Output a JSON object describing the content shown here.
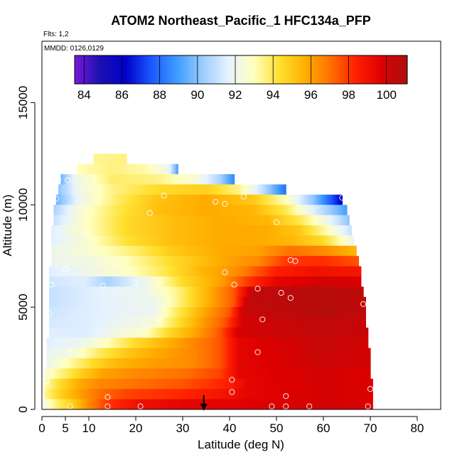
{
  "chart_data": {
    "type": "heatmap",
    "title": "ATOM2 Northeast_Pacific_1 HFC134a_PFP",
    "subtitle_flights": "Flts: 1,2",
    "subtitle_dates": "MMDD: 0126,0129",
    "xlabel": "Latitude (deg N)",
    "ylabel": "Altitude (m)",
    "xlim": [
      0,
      85
    ],
    "ylim": [
      0,
      18000
    ],
    "x_ticks": [
      0,
      5,
      10,
      20,
      30,
      40,
      50,
      60,
      70,
      80
    ],
    "y_ticks": [
      0,
      5000,
      10000,
      15000
    ],
    "colorbar": {
      "min": 83.5,
      "max": 101.1,
      "ticks": [
        84,
        86,
        88,
        90,
        92,
        94,
        96,
        98,
        100
      ],
      "colors": [
        "#7a18d8",
        "#1a10b0",
        "#0000cc",
        "#1c58ff",
        "#3c9cff",
        "#9cccff",
        "#e6f2ff",
        "#ffffc0",
        "#ffe030",
        "#ffb000",
        "#ff7000",
        "#ff2000",
        "#dd0000",
        "#aa1010"
      ]
    },
    "rows": [
      {
        "alt": 12250,
        "lat_min": 11,
        "lat_max": 18,
        "centers": [
          [
            11,
            93.4
          ],
          [
            18,
            93.6
          ]
        ]
      },
      {
        "alt": 11750,
        "lat_min": 7.5,
        "lat_max": 29,
        "centers": [
          [
            7.5,
            93.0
          ],
          [
            15,
            93.6
          ],
          [
            22,
            93.2
          ],
          [
            27,
            92.0
          ],
          [
            29,
            89.0
          ]
        ]
      },
      {
        "alt": 11250,
        "lat_min": 4,
        "lat_max": 41,
        "centers": [
          [
            4,
            89.5
          ],
          [
            7,
            92.0
          ],
          [
            15,
            93.8
          ],
          [
            25,
            93.5
          ],
          [
            33,
            92.5
          ],
          [
            38,
            90.5
          ],
          [
            41,
            88.5
          ]
        ]
      },
      {
        "alt": 10750,
        "lat_min": 3.5,
        "lat_max": 52,
        "centers": [
          [
            3.5,
            90.0
          ],
          [
            8,
            92.2
          ],
          [
            15,
            93.5
          ],
          [
            25,
            94.5
          ],
          [
            35,
            94.8
          ],
          [
            42,
            93.5
          ],
          [
            47,
            91.0
          ],
          [
            52,
            88.0
          ]
        ]
      },
      {
        "alt": 10250,
        "lat_min": 3,
        "lat_max": 64,
        "centers": [
          [
            3,
            89.5
          ],
          [
            8,
            92.0
          ],
          [
            16,
            93.8
          ],
          [
            25,
            95.2
          ],
          [
            35,
            95.8
          ],
          [
            45,
            95.0
          ],
          [
            52,
            93.0
          ],
          [
            58,
            90.0
          ],
          [
            64,
            86.0
          ]
        ]
      },
      {
        "alt": 9750,
        "lat_min": 2.5,
        "lat_max": 65,
        "centers": [
          [
            2.5,
            90.5
          ],
          [
            8,
            92.5
          ],
          [
            16,
            94.0
          ],
          [
            25,
            95.3
          ],
          [
            35,
            95.8
          ],
          [
            45,
            95.5
          ],
          [
            52,
            94.0
          ],
          [
            58,
            91.5
          ],
          [
            65,
            89.0
          ]
        ]
      },
      {
        "alt": 9250,
        "lat_min": 2.5,
        "lat_max": 65.5,
        "centers": [
          [
            2.5,
            91.0
          ],
          [
            9,
            92.8
          ],
          [
            18,
            94.5
          ],
          [
            28,
            95.3
          ],
          [
            38,
            95.8
          ],
          [
            48,
            95.5
          ],
          [
            55,
            94.0
          ],
          [
            61,
            92.0
          ],
          [
            65.5,
            90.0
          ]
        ]
      },
      {
        "alt": 8750,
        "lat_min": 2,
        "lat_max": 66,
        "centers": [
          [
            2,
            91.5
          ],
          [
            9,
            92.8
          ],
          [
            18,
            94.5
          ],
          [
            28,
            95.3
          ],
          [
            38,
            95.8
          ],
          [
            48,
            95.8
          ],
          [
            55,
            95.0
          ],
          [
            61,
            93.0
          ],
          [
            66,
            91.0
          ]
        ]
      },
      {
        "alt": 8250,
        "lat_min": 2,
        "lat_max": 66.5,
        "centers": [
          [
            2,
            91.5
          ],
          [
            9,
            92.5
          ],
          [
            18,
            94.3
          ],
          [
            28,
            95.3
          ],
          [
            38,
            95.8
          ],
          [
            46,
            95.8
          ],
          [
            53,
            95.5
          ],
          [
            60,
            94.5
          ],
          [
            66.5,
            92.0
          ]
        ]
      },
      {
        "alt": 7750,
        "lat_min": 2,
        "lat_max": 67,
        "centers": [
          [
            2,
            92.0
          ],
          [
            9,
            92.5
          ],
          [
            18,
            93.5
          ],
          [
            28,
            95.0
          ],
          [
            38,
            95.8
          ],
          [
            46,
            96.0
          ],
          [
            53,
            97.0
          ],
          [
            60,
            96.5
          ],
          [
            67,
            95.5
          ]
        ]
      },
      {
        "alt": 7250,
        "lat_min": 2,
        "lat_max": 67.5,
        "centers": [
          [
            2,
            92.0
          ],
          [
            9,
            92.2
          ],
          [
            18,
            93.0
          ],
          [
            28,
            94.5
          ],
          [
            38,
            95.8
          ],
          [
            46,
            96.5
          ],
          [
            52,
            98.0
          ],
          [
            60,
            98.2
          ],
          [
            67.5,
            97.5
          ]
        ]
      },
      {
        "alt": 6750,
        "lat_min": 1.5,
        "lat_max": 68,
        "centers": [
          [
            1.5,
            91.5
          ],
          [
            9,
            92.0
          ],
          [
            18,
            92.8
          ],
          [
            26,
            94.0
          ],
          [
            34,
            95.5
          ],
          [
            42,
            96.5
          ],
          [
            50,
            98.5
          ],
          [
            58,
            99.0
          ],
          [
            68,
            98.8
          ]
        ]
      },
      {
        "alt": 6250,
        "lat_min": 1.5,
        "lat_max": 68,
        "centers": [
          [
            1.5,
            91.2
          ],
          [
            9,
            91.5
          ],
          [
            14,
            90.5
          ],
          [
            22,
            92.0
          ],
          [
            30,
            94.5
          ],
          [
            38,
            96.0
          ],
          [
            44,
            98.0
          ],
          [
            50,
            99.5
          ],
          [
            60,
            100.0
          ],
          [
            68,
            99.8
          ]
        ]
      },
      {
        "alt": 5750,
        "lat_min": 1.5,
        "lat_max": 68.5,
        "centers": [
          [
            1.5,
            91.0
          ],
          [
            10,
            91.5
          ],
          [
            16,
            91.8
          ],
          [
            22,
            92.0
          ],
          [
            29,
            93.5
          ],
          [
            35,
            95.5
          ],
          [
            41,
            97.5
          ],
          [
            45,
            100.5
          ],
          [
            60,
            100.8
          ],
          [
            68.5,
            100.5
          ]
        ]
      },
      {
        "alt": 5250,
        "lat_min": 1.5,
        "lat_max": 69,
        "centers": [
          [
            1.5,
            91.0
          ],
          [
            10,
            91.5
          ],
          [
            18,
            91.8
          ],
          [
            24,
            92.0
          ],
          [
            29,
            93.5
          ],
          [
            35,
            95.5
          ],
          [
            41,
            97.5
          ],
          [
            44,
            100.5
          ],
          [
            60,
            100.8
          ],
          [
            69,
            100.5
          ]
        ]
      },
      {
        "alt": 4750,
        "lat_min": 1.5,
        "lat_max": 69,
        "centers": [
          [
            1.5,
            91.2
          ],
          [
            10,
            91.5
          ],
          [
            18,
            91.8
          ],
          [
            24,
            92.0
          ],
          [
            29,
            94.0
          ],
          [
            35,
            96.0
          ],
          [
            40,
            97.5
          ],
          [
            43,
            100.3
          ],
          [
            60,
            100.8
          ],
          [
            69,
            100.5
          ]
        ]
      },
      {
        "alt": 4250,
        "lat_min": 1.5,
        "lat_max": 69,
        "centers": [
          [
            1.5,
            91.3
          ],
          [
            10,
            91.5
          ],
          [
            18,
            92.0
          ],
          [
            24,
            92.5
          ],
          [
            28,
            94.0
          ],
          [
            34,
            96.0
          ],
          [
            39,
            97.5
          ],
          [
            43,
            100.0
          ],
          [
            60,
            100.5
          ],
          [
            69,
            100.3
          ]
        ]
      },
      {
        "alt": 3750,
        "lat_min": 1.5,
        "lat_max": 69.5,
        "centers": [
          [
            1.5,
            91.5
          ],
          [
            10,
            91.5
          ],
          [
            18,
            92.5
          ],
          [
            22,
            92.8
          ],
          [
            27,
            94.5
          ],
          [
            33,
            96.0
          ],
          [
            38,
            97.5
          ],
          [
            42,
            100.0
          ],
          [
            60,
            100.5
          ],
          [
            69.5,
            100.3
          ]
        ]
      },
      {
        "alt": 3250,
        "lat_min": 1,
        "lat_max": 69.5,
        "centers": [
          [
            1,
            91.5
          ],
          [
            8,
            92.0
          ],
          [
            14,
            93.0
          ],
          [
            20,
            94.5
          ],
          [
            26,
            95.5
          ],
          [
            32,
            96.5
          ],
          [
            38,
            97.5
          ],
          [
            42,
            99.5
          ],
          [
            60,
            100.3
          ],
          [
            69.5,
            100.0
          ]
        ]
      },
      {
        "alt": 2750,
        "lat_min": 1,
        "lat_max": 70,
        "centers": [
          [
            1,
            91.8
          ],
          [
            7,
            92.5
          ],
          [
            12,
            93.8
          ],
          [
            18,
            95.0
          ],
          [
            24,
            95.8
          ],
          [
            32,
            96.5
          ],
          [
            38,
            97.5
          ],
          [
            42,
            99.5
          ],
          [
            60,
            100.3
          ],
          [
            70,
            100.0
          ]
        ]
      },
      {
        "alt": 2250,
        "lat_min": 1,
        "lat_max": 70,
        "centers": [
          [
            1,
            92.0
          ],
          [
            6,
            93.2
          ],
          [
            11,
            94.5
          ],
          [
            16,
            95.5
          ],
          [
            22,
            96.0
          ],
          [
            32,
            96.5
          ],
          [
            38,
            97.5
          ],
          [
            42,
            99.5
          ],
          [
            60,
            100.2
          ],
          [
            70,
            100.0
          ]
        ]
      },
      {
        "alt": 1750,
        "lat_min": 0.5,
        "lat_max": 70,
        "centers": [
          [
            0.5,
            92.5
          ],
          [
            5,
            93.8
          ],
          [
            9,
            95.0
          ],
          [
            13,
            96.0
          ],
          [
            20,
            96.5
          ],
          [
            30,
            97.0
          ],
          [
            38,
            97.8
          ],
          [
            42,
            99.5
          ],
          [
            60,
            100.0
          ],
          [
            70,
            99.8
          ]
        ]
      },
      {
        "alt": 1250,
        "lat_min": 0.5,
        "lat_max": 70.5,
        "centers": [
          [
            0.5,
            93.0
          ],
          [
            4,
            94.5
          ],
          [
            8,
            95.8
          ],
          [
            12,
            96.5
          ],
          [
            20,
            97.0
          ],
          [
            30,
            97.5
          ],
          [
            40,
            98.5
          ],
          [
            44,
            99.5
          ],
          [
            60,
            100.0
          ],
          [
            70.5,
            99.8
          ]
        ]
      },
      {
        "alt": 750,
        "lat_min": 0.5,
        "lat_max": 70.5,
        "centers": [
          [
            0.5,
            93.3
          ],
          [
            4,
            94.8
          ],
          [
            8,
            96.0
          ],
          [
            12,
            97.0
          ],
          [
            18,
            97.8
          ],
          [
            28,
            98.2
          ],
          [
            38,
            98.8
          ],
          [
            44,
            99.5
          ],
          [
            60,
            100.0
          ],
          [
            70.5,
            99.8
          ]
        ]
      },
      {
        "alt": 250,
        "lat_min": 0.5,
        "lat_max": 70.5,
        "centers": [
          [
            0.5,
            92.5
          ],
          [
            4,
            94.0
          ],
          [
            7,
            95.0
          ],
          [
            10,
            96.5
          ],
          [
            14,
            98.0
          ],
          [
            20,
            99.0
          ],
          [
            30,
            99.5
          ],
          [
            40,
            99.6
          ],
          [
            60,
            100.0
          ],
          [
            70.5,
            99.8
          ]
        ]
      }
    ],
    "samples": [
      [
        3.5,
        11250
      ],
      [
        5.5,
        11200
      ],
      [
        3,
        10300
      ],
      [
        26,
        10450
      ],
      [
        37,
        10150
      ],
      [
        39,
        10050
      ],
      [
        43,
        10400
      ],
      [
        64,
        10350
      ],
      [
        23,
        9600
      ],
      [
        50,
        9150
      ],
      [
        9,
        8600
      ],
      [
        53,
        7300
      ],
      [
        54,
        7250
      ],
      [
        5,
        6850
      ],
      [
        39,
        6700
      ],
      [
        2,
        6100
      ],
      [
        13,
        6050
      ],
      [
        20,
        6200
      ],
      [
        41,
        6100
      ],
      [
        46,
        5900
      ],
      [
        51,
        5700
      ],
      [
        53,
        5450
      ],
      [
        68.5,
        5150
      ],
      [
        1.5,
        4700
      ],
      [
        25,
        4450
      ],
      [
        22,
        4000
      ],
      [
        47,
        4400
      ],
      [
        6,
        2800
      ],
      [
        46,
        2800
      ],
      [
        1,
        1400
      ],
      [
        40.5,
        1450
      ],
      [
        40.5,
        850
      ],
      [
        14,
        600
      ],
      [
        52,
        650
      ],
      [
        70,
        1000
      ],
      [
        0.5,
        200
      ],
      [
        6,
        150
      ],
      [
        14,
        150
      ],
      [
        21,
        150
      ],
      [
        49,
        150
      ],
      [
        52,
        150
      ],
      [
        57,
        150
      ],
      [
        69.5,
        150
      ]
    ],
    "marker_lat": 34.5
  }
}
